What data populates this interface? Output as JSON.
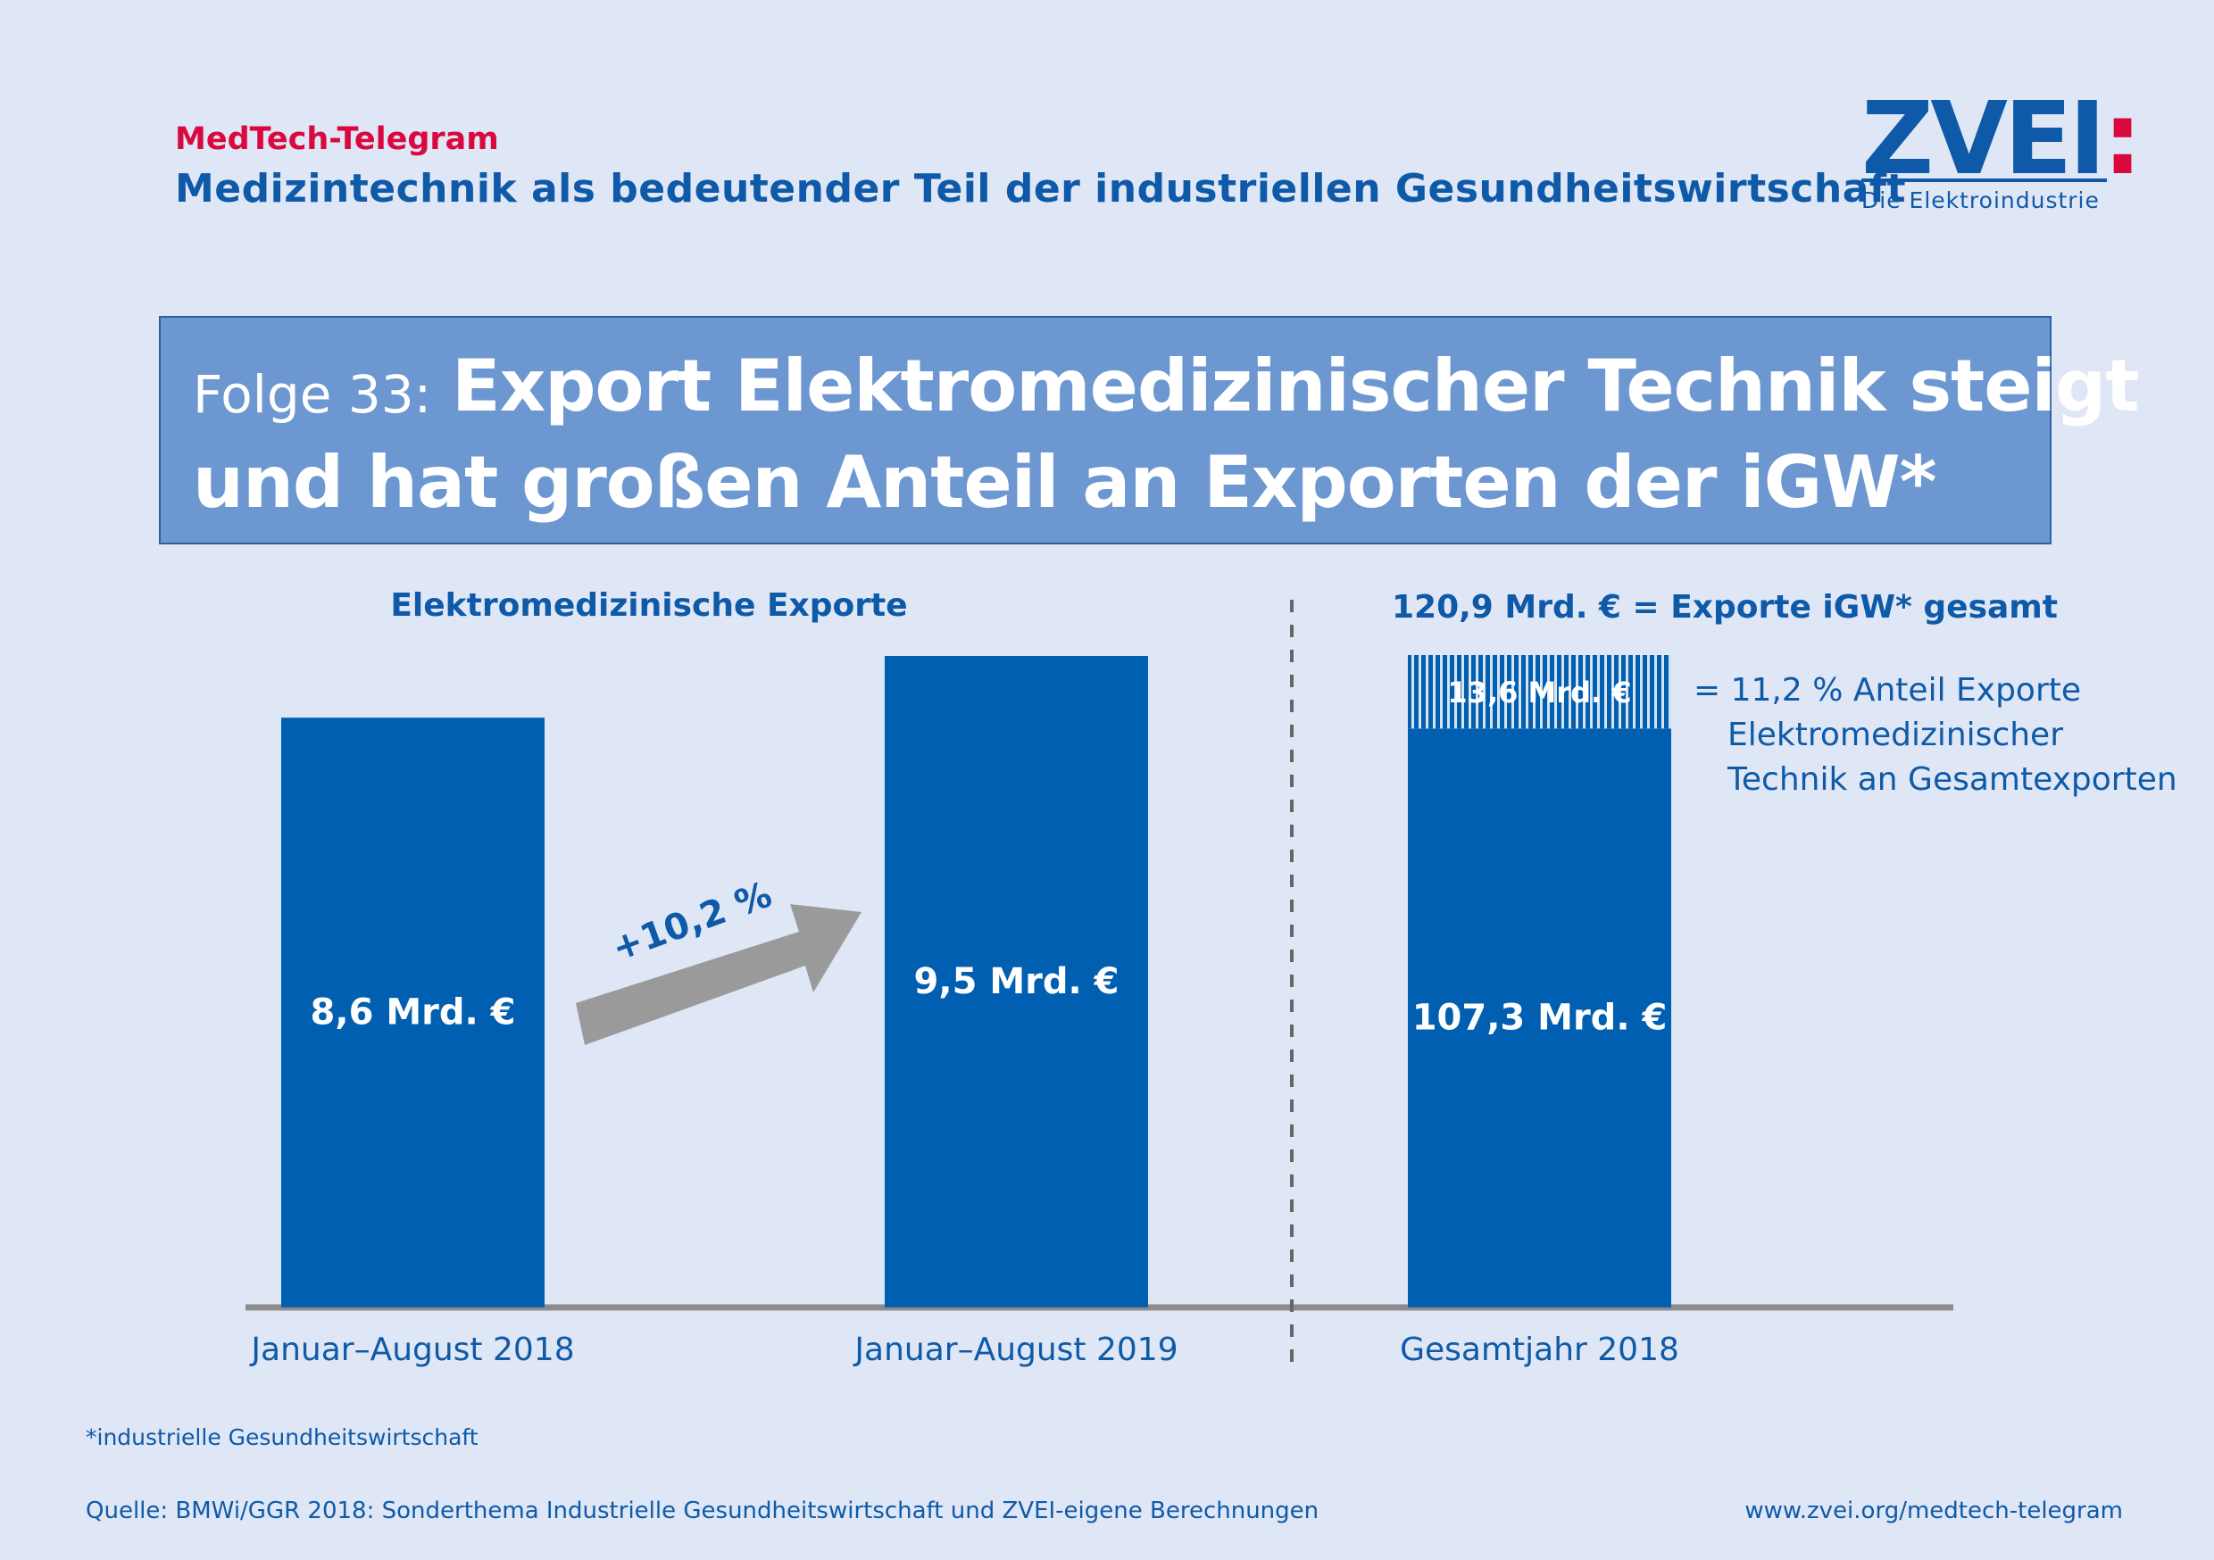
{
  "header": {
    "kicker": "MedTech-Telegram",
    "subtitle": "Medizintechnik als bedeutender Teil der industriellen Gesundheitswirtschaft",
    "logo_mark": "ZVEI",
    "logo_colon": ":",
    "logo_tag": "Die Elektroindustrie"
  },
  "headline": {
    "series": "Folge 33:",
    "line1": "Export Elektromedizinischer Technik steigt",
    "line2": "und hat großen Anteil an Exporten der iGW*"
  },
  "colors": {
    "bar": "#005fb0",
    "text_blue": "#0e5aa8",
    "arrow": "#9a9a9a",
    "baseline": "#8c8c8c",
    "accent_red": "#d9083f",
    "headline_box": "#6c97d0"
  },
  "chart_data": [
    {
      "type": "bar",
      "title": "Elektromedizinische Exporte",
      "categories": [
        "Januar–August 2018",
        "Januar–August 2019"
      ],
      "values": [
        8.6,
        9.5
      ],
      "value_labels": [
        "8,6 Mrd. €",
        "9,5 Mrd. €"
      ],
      "unit": "Mrd. €",
      "growth_label": "+10,2 %"
    },
    {
      "type": "bar",
      "stacked": true,
      "title": "120,9 Mrd. € = Exporte iGW* gesamt",
      "categories": [
        "Gesamtjahr 2018"
      ],
      "series": [
        {
          "values": [
            107.3
          ],
          "label": "107,3 Mrd. €",
          "pattern": "solid"
        },
        {
          "values": [
            13.6
          ],
          "label": "13,6 Mrd. €",
          "pattern": "striped"
        }
      ],
      "total": 120.9,
      "annotation": [
        "= 11,2 % Anteil Exporte",
        "Elektromedizinischer",
        "Technik an Gesamtexporten"
      ]
    }
  ],
  "footer": {
    "footnote": "*industrielle Gesundheitswirtschaft",
    "source": "Quelle: BMWi/GGR 2018: Sonderthema Industrielle Gesundheitswirtschaft und ZVEI-eigene Berechnungen",
    "url": "www.zvei.org/medtech-telegram"
  }
}
